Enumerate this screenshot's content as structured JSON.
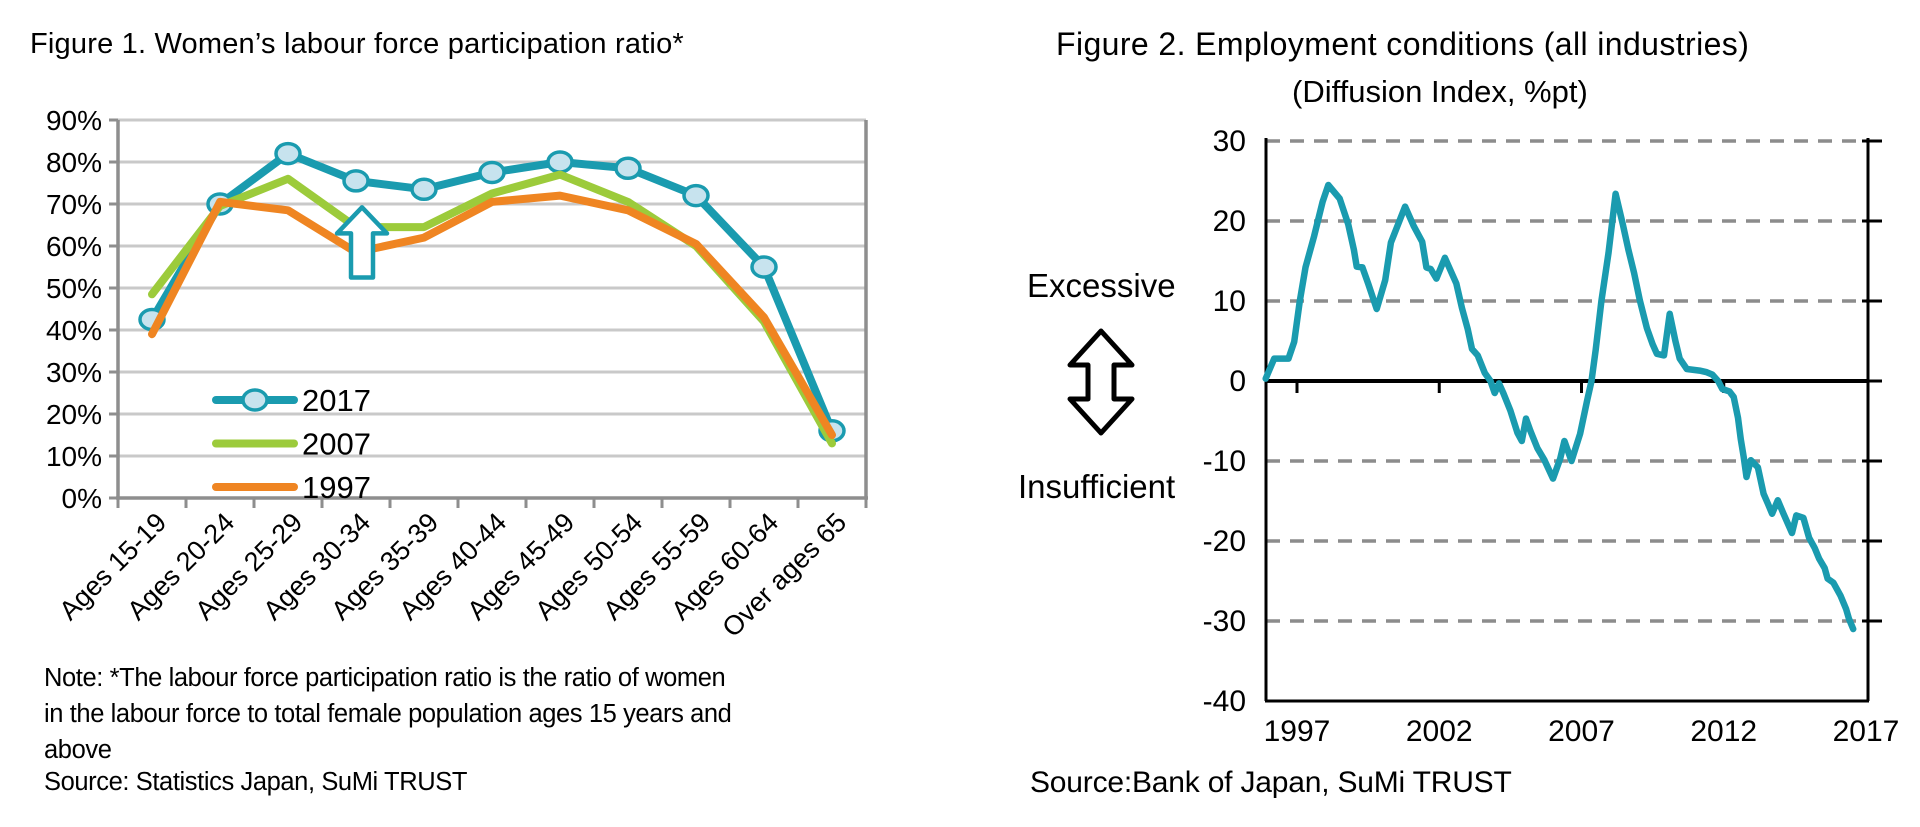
{
  "chart_data": [
    {
      "figure": "Figure 1",
      "type": "line",
      "title": "Figure 1. Women’s labour force participation ratio*",
      "categories": [
        "Ages 15-19",
        "Ages 20-24",
        "Ages 25-29",
        "Ages 30-34",
        "Ages 35-39",
        "Ages 40-44",
        "Ages 45-49",
        "Ages 50-54",
        "Ages 55-59",
        "Ages 60-64",
        "Over ages 65"
      ],
      "y_tick_labels": [
        "90%",
        "80%",
        "70%",
        "60%",
        "50%",
        "40%",
        "30%",
        "20%",
        "10%",
        "0%"
      ],
      "ylim": [
        0,
        90
      ],
      "grid": true,
      "legend_position": "inside-lower-left",
      "series": [
        {
          "name": "2017",
          "color": "#1A9BAF",
          "marker": "ellipse",
          "marker_fill": "#C7E3EE",
          "values": [
            42.5,
            70,
            82,
            75.5,
            73.5,
            77.5,
            80,
            78.5,
            72,
            55,
            16
          ]
        },
        {
          "name": "2007",
          "color": "#9CCB3B",
          "values": [
            48.5,
            69.5,
            76,
            64.5,
            64.5,
            72.5,
            77,
            70.5,
            60,
            42,
            13
          ]
        },
        {
          "name": "1997",
          "color": "#EF8522",
          "values": [
            39,
            70.5,
            68.5,
            58.5,
            62,
            70.5,
            72,
            68.5,
            60.5,
            43,
            15
          ]
        }
      ],
      "annotation": {
        "type": "hollow-up-arrow",
        "category_index": 3,
        "color": "#1A9BAF"
      },
      "note": "Note: *The labour force participation ratio is the ratio of women\nin the labour force to total female population ages 15 years and\nabove",
      "source": "Source: Statistics Japan, SuMi TRUST"
    },
    {
      "figure": "Figure 2",
      "type": "line",
      "title": "Figure 2. Employment conditions (all industries)",
      "subtitle": "(Diffusion Index, %pt)",
      "axis_label_top": "Excessive",
      "axis_label_bottom": "Insufficient",
      "y_ticks": [
        30,
        20,
        10,
        0,
        -10,
        -20,
        -30,
        -40
      ],
      "x_ticks": [
        1997,
        2002,
        2007,
        2012,
        2017
      ],
      "ylim": [
        -40,
        30
      ],
      "grid": "dashed horizontal at every 10, solid zero line",
      "series": [
        {
          "name": "Employment conditions DI (all industries)",
          "color": "#1A9BAF",
          "points": [
            [
              1995.9,
              0.3
            ],
            [
              1996.2,
              2.8
            ],
            [
              1996.7,
              2.8
            ],
            [
              1996.9,
              4.9
            ],
            [
              1997.1,
              10
            ],
            [
              1997.3,
              14.2
            ],
            [
              1997.6,
              18.1
            ],
            [
              1997.9,
              22.4
            ],
            [
              1998.1,
              24.5
            ],
            [
              1998.5,
              22.8
            ],
            [
              1998.8,
              19.6
            ],
            [
              1999.0,
              16.4
            ],
            [
              1999.1,
              14.3
            ],
            [
              1999.3,
              14.2
            ],
            [
              1999.5,
              12.2
            ],
            [
              1999.8,
              9.0
            ],
            [
              2000.1,
              12.6
            ],
            [
              2000.3,
              17.3
            ],
            [
              2000.8,
              21.8
            ],
            [
              2001.1,
              19.4
            ],
            [
              2001.4,
              17.4
            ],
            [
              2001.55,
              14.2
            ],
            [
              2001.7,
              14.0
            ],
            [
              2001.9,
              12.8
            ],
            [
              2002.2,
              15.4
            ],
            [
              2002.6,
              12.2
            ],
            [
              2002.8,
              9.1
            ],
            [
              2003.0,
              6.5
            ],
            [
              2003.15,
              4.0
            ],
            [
              2003.35,
              3.2
            ],
            [
              2003.6,
              1.0
            ],
            [
              2003.8,
              0.0
            ],
            [
              2003.95,
              -1.5
            ],
            [
              2004.1,
              -0.3
            ],
            [
              2004.25,
              -1.5
            ],
            [
              2004.5,
              -3.7
            ],
            [
              2004.75,
              -6.5
            ],
            [
              2004.9,
              -7.5
            ],
            [
              2005.05,
              -4.7
            ],
            [
              2005.2,
              -6.2
            ],
            [
              2005.45,
              -8.4
            ],
            [
              2005.7,
              -9.9
            ],
            [
              2006.0,
              -12.2
            ],
            [
              2006.25,
              -9.7
            ],
            [
              2006.4,
              -7.5
            ],
            [
              2006.65,
              -10.0
            ],
            [
              2006.95,
              -6.6
            ],
            [
              2007.2,
              -2.4
            ],
            [
              2007.35,
              0.0
            ],
            [
              2007.5,
              3.9
            ],
            [
              2007.7,
              10.0
            ],
            [
              2007.95,
              16.0
            ],
            [
              2008.2,
              23.4
            ],
            [
              2008.45,
              19.6
            ],
            [
              2008.65,
              16.4
            ],
            [
              2008.85,
              13.5
            ],
            [
              2009.05,
              10.1
            ],
            [
              2009.3,
              6.6
            ],
            [
              2009.5,
              4.6
            ],
            [
              2009.65,
              3.4
            ],
            [
              2009.9,
              3.2
            ],
            [
              2010.1,
              8.4
            ],
            [
              2010.3,
              5.0
            ],
            [
              2010.45,
              2.8
            ],
            [
              2010.7,
              1.5
            ],
            [
              2011.15,
              1.3
            ],
            [
              2011.4,
              1.1
            ],
            [
              2011.6,
              0.8
            ],
            [
              2011.8,
              0.0
            ],
            [
              2011.95,
              -1.0
            ],
            [
              2012.2,
              -1.3
            ],
            [
              2012.35,
              -2.0
            ],
            [
              2012.5,
              -4.6
            ],
            [
              2012.6,
              -7.3
            ],
            [
              2012.7,
              -9.5
            ],
            [
              2012.8,
              -12.0
            ],
            [
              2012.95,
              -9.9
            ],
            [
              2013.2,
              -10.8
            ],
            [
              2013.4,
              -14.1
            ],
            [
              2013.55,
              -15.3
            ],
            [
              2013.7,
              -16.6
            ],
            [
              2013.9,
              -14.9
            ],
            [
              2014.1,
              -16.6
            ],
            [
              2014.4,
              -19.0
            ],
            [
              2014.55,
              -16.8
            ],
            [
              2014.8,
              -17.1
            ],
            [
              2015.0,
              -19.6
            ],
            [
              2015.2,
              -20.9
            ],
            [
              2015.35,
              -22.2
            ],
            [
              2015.55,
              -23.4
            ],
            [
              2015.65,
              -24.7
            ],
            [
              2015.85,
              -25.2
            ],
            [
              2016.1,
              -26.8
            ],
            [
              2016.3,
              -28.5
            ],
            [
              2016.4,
              -29.7
            ],
            [
              2016.55,
              -31.0
            ]
          ]
        }
      ],
      "source": "Source:Bank of Japan, SuMi TRUST"
    }
  ]
}
